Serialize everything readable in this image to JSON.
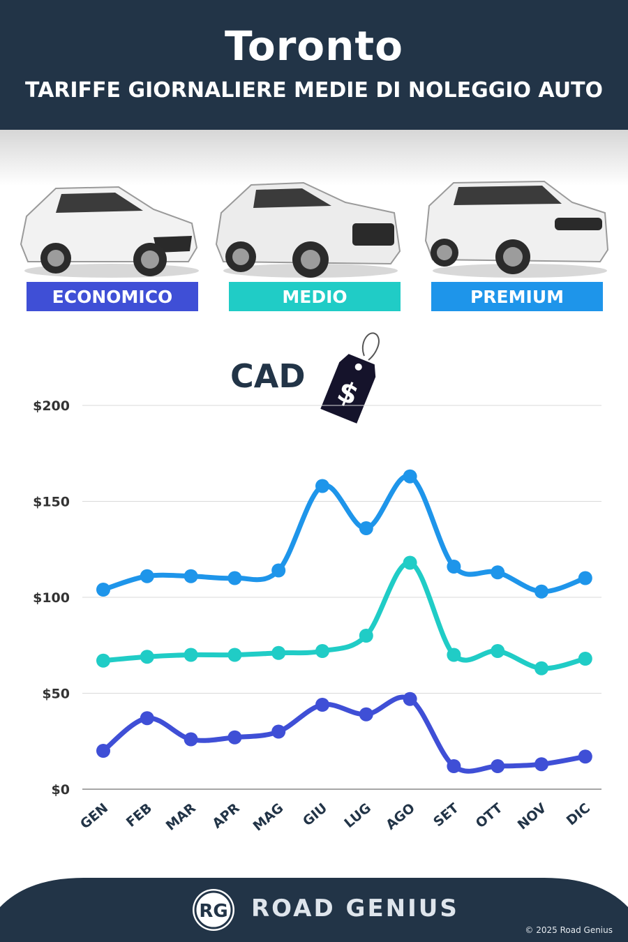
{
  "header": {
    "title": "Toronto",
    "subtitle": "TARIFFE GIORNALIERE MEDIE DI NOLEGGIO AUTO"
  },
  "categories": [
    {
      "label": "ECONOMICO",
      "color": "#3f4fd6"
    },
    {
      "label": "MEDIO",
      "color": "#20ccc6"
    },
    {
      "label": "PREMIUM",
      "color": "#1e95ea"
    }
  ],
  "currency": {
    "label": "CAD",
    "icon": "price-tag-dollar-icon",
    "symbol": "$"
  },
  "chart_data": {
    "type": "line",
    "x": [
      "GEN",
      "FEB",
      "MAR",
      "APR",
      "MAG",
      "GIU",
      "LUG",
      "AGO",
      "SET",
      "OTT",
      "NOV",
      "DIC"
    ],
    "series": [
      {
        "name": "PREMIUM",
        "color": "#1e95ea",
        "values": [
          104,
          111,
          111,
          110,
          114,
          158,
          136,
          163,
          116,
          113,
          103,
          110
        ]
      },
      {
        "name": "MEDIO",
        "color": "#20ccc6",
        "values": [
          67,
          69,
          70,
          70,
          71,
          72,
          80,
          118,
          70,
          72,
          63,
          68
        ]
      },
      {
        "name": "ECONOMICO",
        "color": "#3f4fd6",
        "values": [
          20,
          37,
          26,
          27,
          30,
          44,
          39,
          47,
          12,
          12,
          13,
          17
        ]
      }
    ],
    "yticks": [
      {
        "value": 0,
        "label": "$0"
      },
      {
        "value": 50,
        "label": "$50"
      },
      {
        "value": 100,
        "label": "$100"
      },
      {
        "value": 150,
        "label": "$150"
      },
      {
        "value": 200,
        "label": "$200"
      }
    ],
    "ylim": [
      0,
      200
    ],
    "grid": true,
    "legend": "top"
  },
  "footer": {
    "logo_text": "RG",
    "brand": "ROAD GENIUS",
    "copyright": "© 2025 Road Genius"
  }
}
